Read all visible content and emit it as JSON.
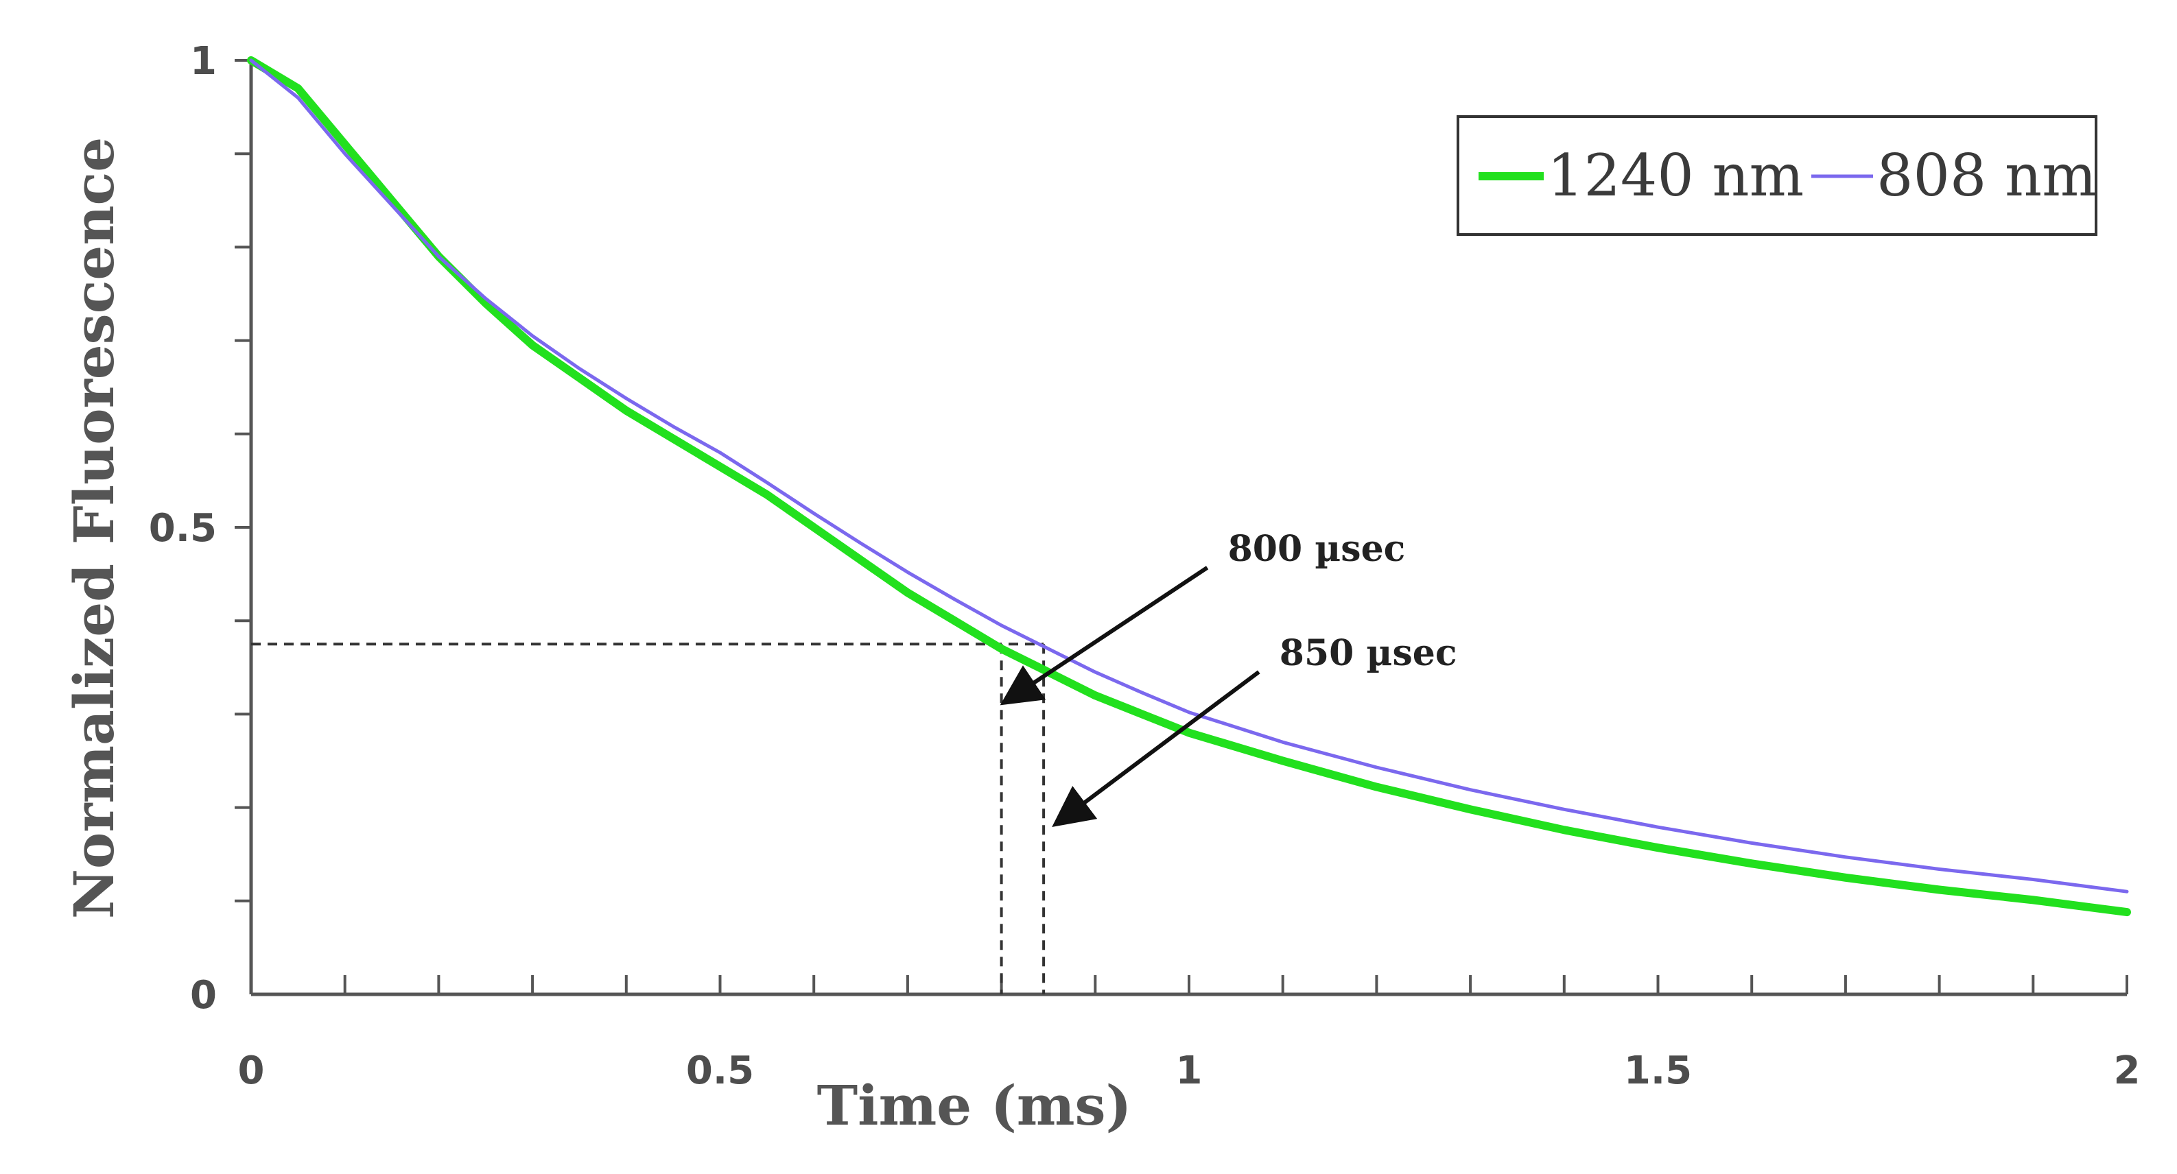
{
  "chart_data": {
    "type": "line",
    "xlabel": "Time (ms)",
    "ylabel": "Normalized Fluorescence",
    "xlim": [
      0,
      2
    ],
    "ylim": [
      0,
      1
    ],
    "x_ticks": [
      {
        "value": 0,
        "label": "0"
      },
      {
        "value": 0.5,
        "label": "0.5"
      },
      {
        "value": 1,
        "label": "1"
      },
      {
        "value": 1.5,
        "label": "1.5"
      },
      {
        "value": 2,
        "label": "2"
      }
    ],
    "y_ticks": [
      {
        "value": 0,
        "label": "0"
      },
      {
        "value": 0.5,
        "label": "0.5"
      },
      {
        "value": 1,
        "label": "1"
      }
    ],
    "x_minor_step": 0.1,
    "y_minor_step": 0.1,
    "grid": false,
    "legend_position": "top-right",
    "series": [
      {
        "name": "1240 nm",
        "color": "#22e01e",
        "x": [
          0,
          0.05,
          0.1,
          0.15,
          0.2,
          0.25,
          0.3,
          0.35,
          0.4,
          0.45,
          0.5,
          0.55,
          0.6,
          0.65,
          0.7,
          0.75,
          0.8,
          0.85,
          0.9,
          0.95,
          1.0,
          1.1,
          1.2,
          1.3,
          1.4,
          1.5,
          1.6,
          1.7,
          1.8,
          1.9,
          2.0
        ],
        "values": [
          1.0,
          0.97,
          0.91,
          0.85,
          0.79,
          0.74,
          0.695,
          0.66,
          0.625,
          0.595,
          0.565,
          0.535,
          0.5,
          0.465,
          0.43,
          0.4,
          0.37,
          0.345,
          0.32,
          0.3,
          0.28,
          0.25,
          0.222,
          0.198,
          0.176,
          0.157,
          0.14,
          0.125,
          0.112,
          0.101,
          0.088
        ]
      },
      {
        "name": "808 nm",
        "color": "#7b68ee",
        "x": [
          0,
          0.05,
          0.1,
          0.15,
          0.2,
          0.25,
          0.3,
          0.35,
          0.4,
          0.45,
          0.5,
          0.55,
          0.6,
          0.65,
          0.7,
          0.75,
          0.8,
          0.85,
          0.9,
          0.95,
          1.0,
          1.1,
          1.2,
          1.3,
          1.4,
          1.5,
          1.6,
          1.7,
          1.8,
          1.9,
          2.0
        ],
        "values": [
          1.0,
          0.96,
          0.9,
          0.845,
          0.79,
          0.745,
          0.705,
          0.67,
          0.638,
          0.608,
          0.58,
          0.548,
          0.515,
          0.483,
          0.452,
          0.423,
          0.395,
          0.37,
          0.345,
          0.323,
          0.302,
          0.27,
          0.243,
          0.219,
          0.198,
          0.179,
          0.162,
          0.147,
          0.134,
          0.123,
          0.11
        ]
      }
    ],
    "reference_lines": {
      "y_level": 0.375,
      "x_values": [
        0.8,
        0.845
      ]
    },
    "annotations": [
      {
        "text": "800 µsec",
        "points_to": {
          "x": 0.8,
          "y": 0.31
        }
      },
      {
        "text": "850 µsec",
        "points_to": {
          "x": 0.855,
          "y": 0.18
        }
      }
    ]
  }
}
